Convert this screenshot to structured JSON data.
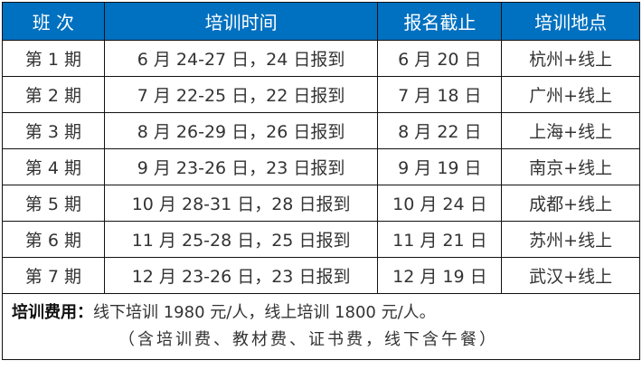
{
  "headers": [
    "班 次",
    "培训时间",
    "报名截止",
    "培训地点"
  ],
  "rows": [
    [
      "第 1 期",
      "6 月 24-27 日，24 日报到",
      "6 月 20 日",
      "杭州+线上"
    ],
    [
      "第 2 期",
      "7 月 22-25 日，22 日报到",
      "7 月 18 日",
      "广州+线上"
    ],
    [
      "第 3 期",
      "8 月 26-29 日，26 日报到",
      "8 月 22 日",
      "上海+线上"
    ],
    [
      "第 4 期",
      "9 月 23-26 日，23 日报到",
      "9 月 19 日",
      "南京+线上"
    ],
    [
      "第 5 期",
      "10 月 28-31 日，28 日报到",
      "10 月 24 日",
      "成都+线上"
    ],
    [
      "第 6 期",
      "11 月 25-28 日，25 日报到",
      "11 月 21 日",
      "苏州+线上"
    ],
    [
      "第 7 期",
      "12 月 23-26 日，23 日报到",
      "12 月 19 日",
      "武汉+线上"
    ]
  ],
  "fee": {
    "label": "培训费用：",
    "text": "线下培训 1980 元/人，线上培训 1800 元/人。",
    "note": "（含培训费、教材费、证书费，线下含午餐）"
  },
  "colors": {
    "header_bg": "#0070C0"
  }
}
